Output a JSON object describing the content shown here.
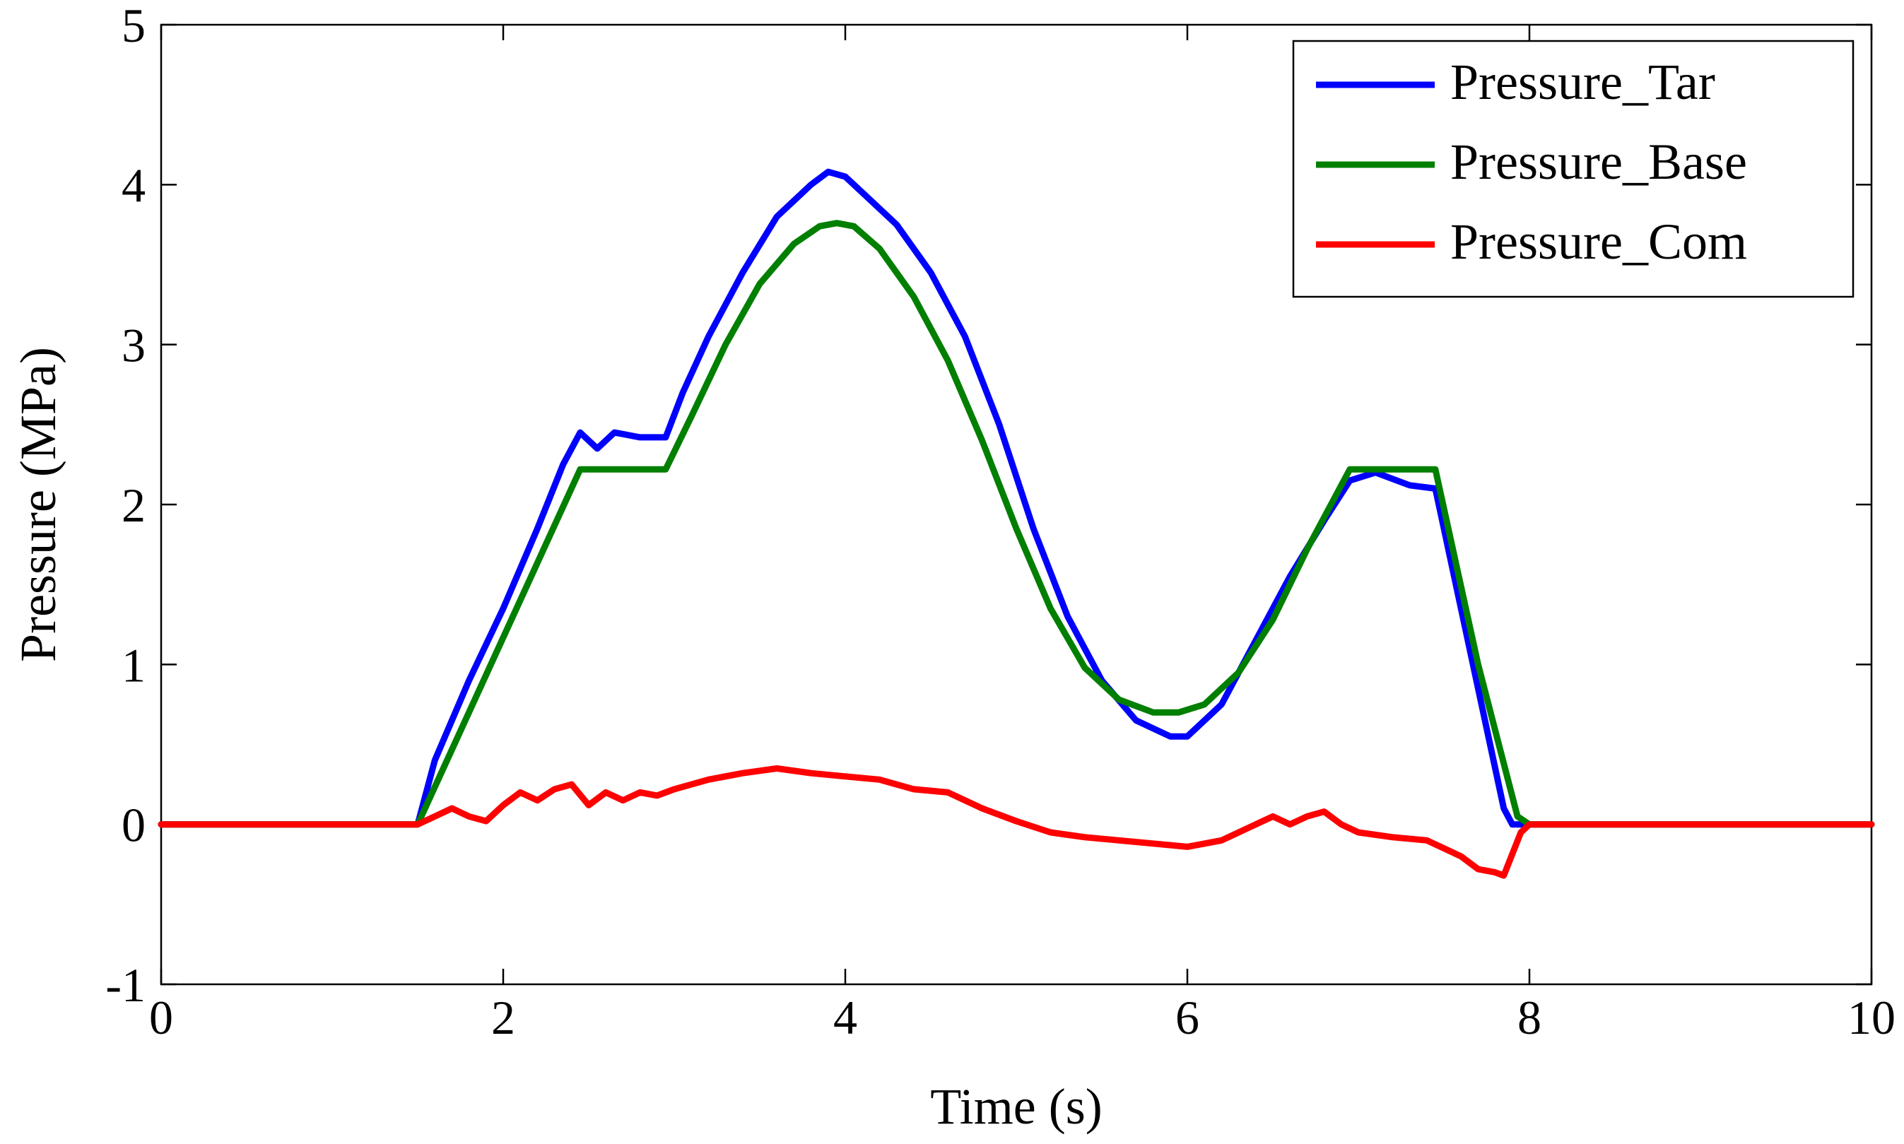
{
  "chart_data": {
    "type": "line",
    "title": "",
    "xlabel": "Time (s)",
    "ylabel": "Pressure (MPa)",
    "xlim": [
      0,
      10
    ],
    "ylim": [
      -1,
      5
    ],
    "x_ticks": [
      0,
      2,
      4,
      6,
      8,
      10
    ],
    "x_tick_labels": [
      "0",
      "2",
      "4",
      "6",
      "8",
      "10"
    ],
    "y_ticks": [
      -1,
      0,
      1,
      2,
      3,
      4,
      5
    ],
    "y_tick_labels": [
      "-1",
      "0",
      "1",
      "2",
      "3",
      "4",
      "5"
    ],
    "grid": false,
    "legend_position": "top-right",
    "series": [
      {
        "name": "Pressure_Tar",
        "color": "#0000ff",
        "x": [
          0,
          1.5,
          1.6,
          1.8,
          2.0,
          2.2,
          2.35,
          2.45,
          2.55,
          2.65,
          2.8,
          2.95,
          3.05,
          3.2,
          3.4,
          3.6,
          3.8,
          3.9,
          4.0,
          4.1,
          4.3,
          4.5,
          4.7,
          4.9,
          5.1,
          5.3,
          5.5,
          5.7,
          5.9,
          6.0,
          6.2,
          6.4,
          6.6,
          6.8,
          6.95,
          7.1,
          7.3,
          7.45,
          7.55,
          7.7,
          7.85,
          7.9,
          8.0,
          10
        ],
        "y": [
          0,
          0,
          0.4,
          0.9,
          1.35,
          1.85,
          2.25,
          2.45,
          2.35,
          2.45,
          2.42,
          2.42,
          2.7,
          3.05,
          3.45,
          3.8,
          4.0,
          4.08,
          4.05,
          3.95,
          3.75,
          3.45,
          3.05,
          2.5,
          1.85,
          1.3,
          0.9,
          0.65,
          0.55,
          0.55,
          0.75,
          1.15,
          1.55,
          1.9,
          2.15,
          2.2,
          2.12,
          2.1,
          1.6,
          0.85,
          0.1,
          0,
          0,
          0
        ]
      },
      {
        "name": "Pressure_Base",
        "color": "#007f00",
        "x": [
          0,
          1.5,
          2.45,
          2.95,
          3.1,
          3.3,
          3.5,
          3.7,
          3.85,
          3.95,
          4.05,
          4.2,
          4.4,
          4.6,
          4.8,
          5.0,
          5.2,
          5.4,
          5.6,
          5.8,
          5.95,
          6.1,
          6.3,
          6.5,
          6.7,
          6.95,
          7.45,
          7.7,
          7.93,
          8.0,
          10
        ],
        "y": [
          0,
          0,
          2.22,
          2.22,
          2.55,
          3.0,
          3.38,
          3.63,
          3.74,
          3.76,
          3.74,
          3.6,
          3.3,
          2.9,
          2.4,
          1.85,
          1.35,
          0.98,
          0.78,
          0.7,
          0.7,
          0.75,
          0.95,
          1.28,
          1.72,
          2.22,
          2.22,
          1.0,
          0.05,
          0,
          0
        ]
      },
      {
        "name": "Pressure_Com",
        "color": "#ff0000",
        "x": [
          0,
          1.5,
          1.6,
          1.7,
          1.8,
          1.9,
          2.0,
          2.1,
          2.2,
          2.3,
          2.4,
          2.5,
          2.6,
          2.7,
          2.8,
          2.9,
          3.0,
          3.2,
          3.4,
          3.6,
          3.8,
          4.0,
          4.2,
          4.4,
          4.6,
          4.8,
          5.0,
          5.2,
          5.4,
          5.6,
          5.8,
          6.0,
          6.2,
          6.4,
          6.5,
          6.6,
          6.7,
          6.8,
          6.9,
          7.0,
          7.2,
          7.4,
          7.5,
          7.6,
          7.7,
          7.8,
          7.85,
          7.95,
          8.0,
          10
        ],
        "y": [
          0,
          0,
          0.05,
          0.1,
          0.05,
          0.02,
          0.12,
          0.2,
          0.15,
          0.22,
          0.25,
          0.12,
          0.2,
          0.15,
          0.2,
          0.18,
          0.22,
          0.28,
          0.32,
          0.35,
          0.32,
          0.3,
          0.28,
          0.22,
          0.2,
          0.1,
          0.02,
          -0.05,
          -0.08,
          -0.1,
          -0.12,
          -0.14,
          -0.1,
          0.0,
          0.05,
          0.0,
          0.05,
          0.08,
          0.0,
          -0.05,
          -0.08,
          -0.1,
          -0.15,
          -0.2,
          -0.28,
          -0.3,
          -0.32,
          -0.05,
          0,
          0
        ]
      }
    ]
  }
}
